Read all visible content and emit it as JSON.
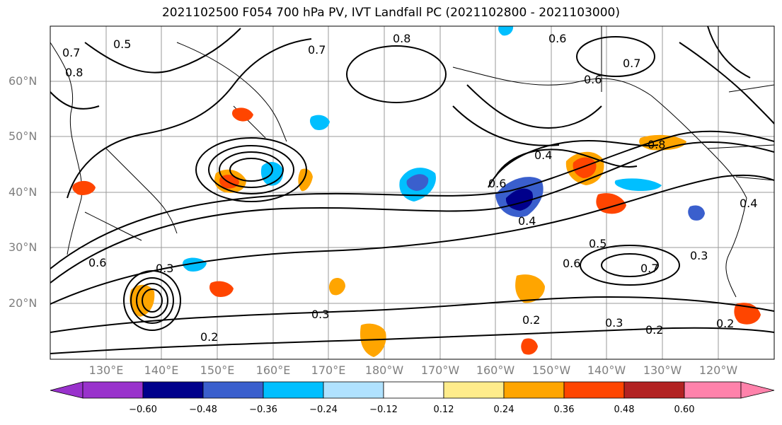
{
  "title": "2021102500 F054 700 hPa PV, IVT Landfall PC (2021102800 - 2021103000)",
  "lat_labels": [
    "60°N",
    "50°N",
    "40°N",
    "30°N",
    "20°N"
  ],
  "lon_labels": [
    "130°E",
    "140°E",
    "150°E",
    "160°E",
    "170°E",
    "180°W",
    "170°W",
    "160°W",
    "150°W",
    "140°W",
    "130°W",
    "120°W"
  ],
  "colorbar": {
    "ticks": [
      "−0.60",
      "−0.48",
      "−0.36",
      "−0.24",
      "−0.12",
      "0.12",
      "0.24",
      "0.36",
      "0.48",
      "0.60"
    ],
    "colors": [
      "#9932CC",
      "#00008B",
      "#3A5FCD",
      "#00BFFF",
      "#B0E2FF",
      "#FFFFFF",
      "#FFEC8B",
      "#FFA500",
      "#FF4500",
      "#B22222",
      "#FF82AB"
    ]
  },
  "contour_labels": [
    "0.5",
    "0.7",
    "0.8",
    "0.6",
    "0.7",
    "0.6",
    "0.7",
    "0.8",
    "0.4",
    "0.6",
    "0.3",
    "0.2",
    "0.3",
    "0.2",
    "0.3",
    "0.2",
    "0.4",
    "0.5",
    "0.6",
    "0.7",
    "0.8",
    "0.6",
    "0.4",
    "0.3",
    "0.2"
  ]
}
